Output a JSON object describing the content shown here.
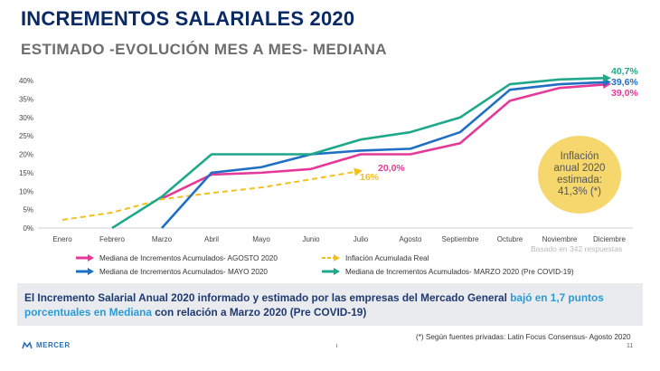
{
  "header": {
    "title": "INCREMENTOS SALARIALES 2020",
    "subtitle": "ESTIMADO -EVOLUCIÓN MES A MES- MEDIANA"
  },
  "chart_data": {
    "type": "line",
    "categories": [
      "Enero",
      "Febrero",
      "Marzo",
      "Abril",
      "Mayo",
      "Junio",
      "Julio",
      "Agosto",
      "Septiembre",
      "Octubre",
      "Noviembre",
      "Diciembre"
    ],
    "y_ticks": [
      "0%",
      "5%",
      "10%",
      "15%",
      "20%",
      "25%",
      "30%",
      "35%",
      "40%"
    ],
    "ylim": [
      0,
      40
    ],
    "grid": false,
    "legend_position": "bottom",
    "series": [
      {
        "name": "Mediana de Incrementos Acumulados- AGOSTO 2020",
        "color": "#e5399a",
        "style": "solid",
        "values": [
          null,
          null,
          8,
          14.5,
          15,
          16,
          20,
          20,
          23,
          34.5,
          38,
          39
        ]
      },
      {
        "name": "Inflación Acumulada Real",
        "color": "#f2c01e",
        "style": "dashed",
        "values": [
          2.2,
          4.2,
          7.8,
          9.5,
          11,
          13.2,
          15.5,
          null,
          null,
          null,
          null,
          null
        ]
      },
      {
        "name": "Mediana de Incrementos Acumulados- MAYO 2020",
        "color": "#1f6fc5",
        "style": "solid",
        "values": [
          null,
          null,
          0,
          15,
          16.5,
          20,
          21,
          21.5,
          26,
          37.5,
          39,
          39.6
        ]
      },
      {
        "name": "Mediana de Incrementos Acumulados- MARZO 2020 (Pre COVID-19)",
        "color": "#1fa98a",
        "style": "solid",
        "values": [
          null,
          0,
          8.5,
          20,
          20,
          20,
          24,
          26,
          30,
          39,
          40.3,
          40.7
        ]
      }
    ],
    "data_labels": [
      {
        "text": "40,7%",
        "color": "#1fa98a"
      },
      {
        "text": "39,6%",
        "color": "#1f6fc5"
      },
      {
        "text": "39,0%",
        "color": "#e5399a"
      },
      {
        "text": "20,0%",
        "color": "#e5399a"
      },
      {
        "text": "16%",
        "color": "#f2c01e"
      }
    ]
  },
  "annotation": {
    "line1": "Inflación",
    "line2": "anual 2020",
    "line3": "estimada:",
    "line4": "41,3% (*)",
    "color": "#f5d76e"
  },
  "note_responses": "Basado en 342 respuestas",
  "footer": {
    "text_part1": "El Incremento Salarial Anual 2020 informado y estimado por las empresas del Mercado General ",
    "text_highlight": "bajó en 1,7 puntos porcentuales en Mediana",
    "text_part2": " con relación a Marzo 2020 (Pre COVID-19)"
  },
  "source_note": "(*) Según fuentes privadas: Latin Focus Consensus- Agosto 2020",
  "page_number": "11",
  "logo_text": "MERCER"
}
